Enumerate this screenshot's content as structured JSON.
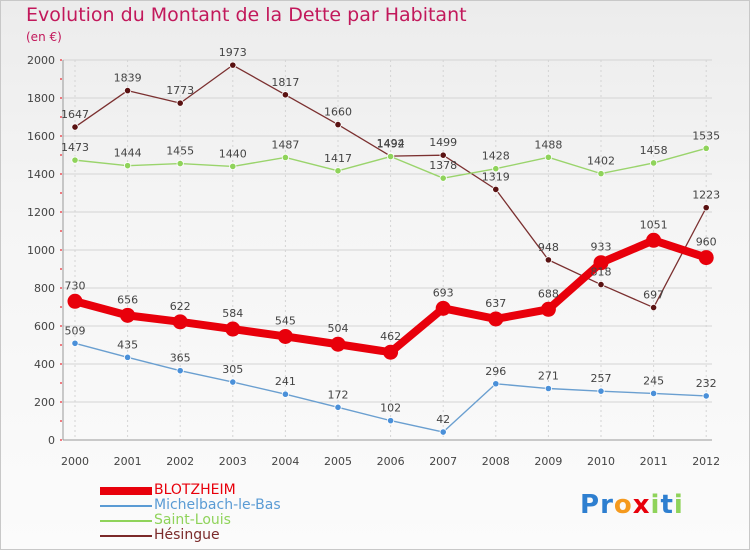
{
  "chart_data": {
    "type": "line",
    "title": "Evolution du Montant de la Dette par Habitant",
    "subtitle": "(en €)",
    "x": [
      "2000",
      "2001",
      "2002",
      "2003",
      "2004",
      "2005",
      "2006",
      "2007",
      "2008",
      "2009",
      "2010",
      "2011",
      "2012"
    ],
    "ylim": [
      0,
      2000
    ],
    "yticks": [
      0,
      200,
      400,
      600,
      800,
      1000,
      1200,
      1400,
      1600,
      1800,
      2000
    ],
    "grid": true,
    "legend_position": "bottom-left",
    "series": [
      {
        "name": "BLOTZHEIM",
        "color": "#e8000b",
        "values": [
          730,
          656,
          622,
          584,
          545,
          504,
          462,
          693,
          637,
          688,
          933,
          1051,
          960
        ]
      },
      {
        "name": "Michelbach-le-Bas",
        "color": "#5a9bd4",
        "values": [
          509,
          435,
          365,
          305,
          241,
          172,
          102,
          42,
          296,
          271,
          257,
          245,
          232
        ]
      },
      {
        "name": "Saint-Louis",
        "color": "#8fd35a",
        "values": [
          1473,
          1444,
          1455,
          1440,
          1487,
          1417,
          1492,
          1378,
          1428,
          1488,
          1402,
          1458,
          1535
        ]
      },
      {
        "name": "Hésingue",
        "color": "#7b2a2a",
        "values": [
          1647,
          1839,
          1773,
          1973,
          1817,
          1660,
          1494,
          1499,
          1319,
          948,
          818,
          697,
          1223
        ]
      }
    ]
  },
  "logo": {
    "letters": [
      {
        "ch": "P",
        "color": "#2e7fd0"
      },
      {
        "ch": "r",
        "color": "#2e7fd0"
      },
      {
        "ch": "o",
        "color": "#f59a1e"
      },
      {
        "ch": "x",
        "color": "#e8000b"
      },
      {
        "ch": "i",
        "color": "#8fd35a"
      },
      {
        "ch": "t",
        "color": "#2e7fd0"
      },
      {
        "ch": "i",
        "color": "#8fd35a"
      }
    ]
  }
}
